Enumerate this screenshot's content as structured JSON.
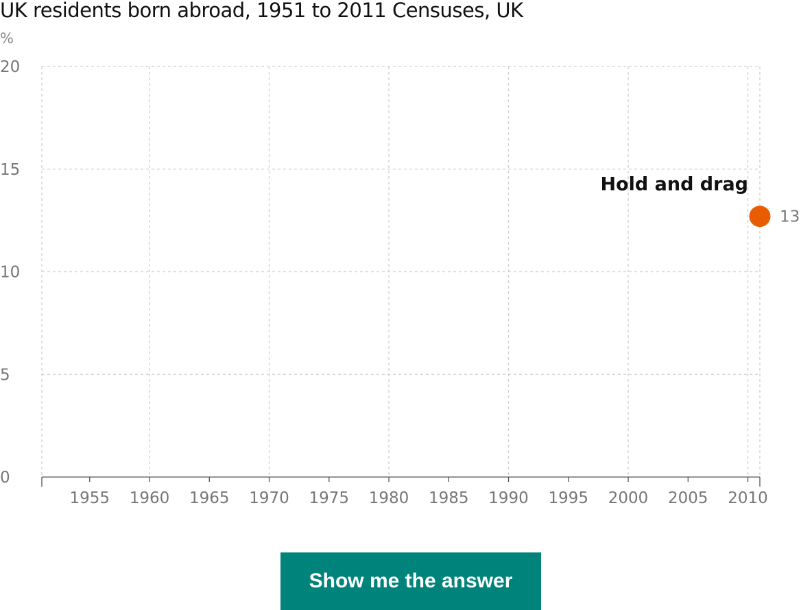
{
  "chart_data": {
    "type": "line",
    "title": "UK residents born abroad, 1951 to 2011 Censuses, UK",
    "ylabel": "%",
    "xlabel": "",
    "xlim": [
      1951,
      2011
    ],
    "ylim": [
      0,
      20
    ],
    "y_ticks": [
      0,
      5,
      10,
      15,
      20
    ],
    "x_ticks": [
      1955,
      1960,
      1965,
      1970,
      1975,
      1980,
      1985,
      1990,
      1995,
      2000,
      2005,
      2010
    ],
    "grid": true,
    "series": [
      {
        "points": [
          {
            "x": 2011,
            "y": 12.7
          }
        ]
      }
    ],
    "point_label": "13",
    "annotation": "Hold and drag",
    "point_color": "#e85d04"
  },
  "controls": {
    "answer_button_label": "Show me the answer",
    "answer_button_color": "#00837b"
  }
}
